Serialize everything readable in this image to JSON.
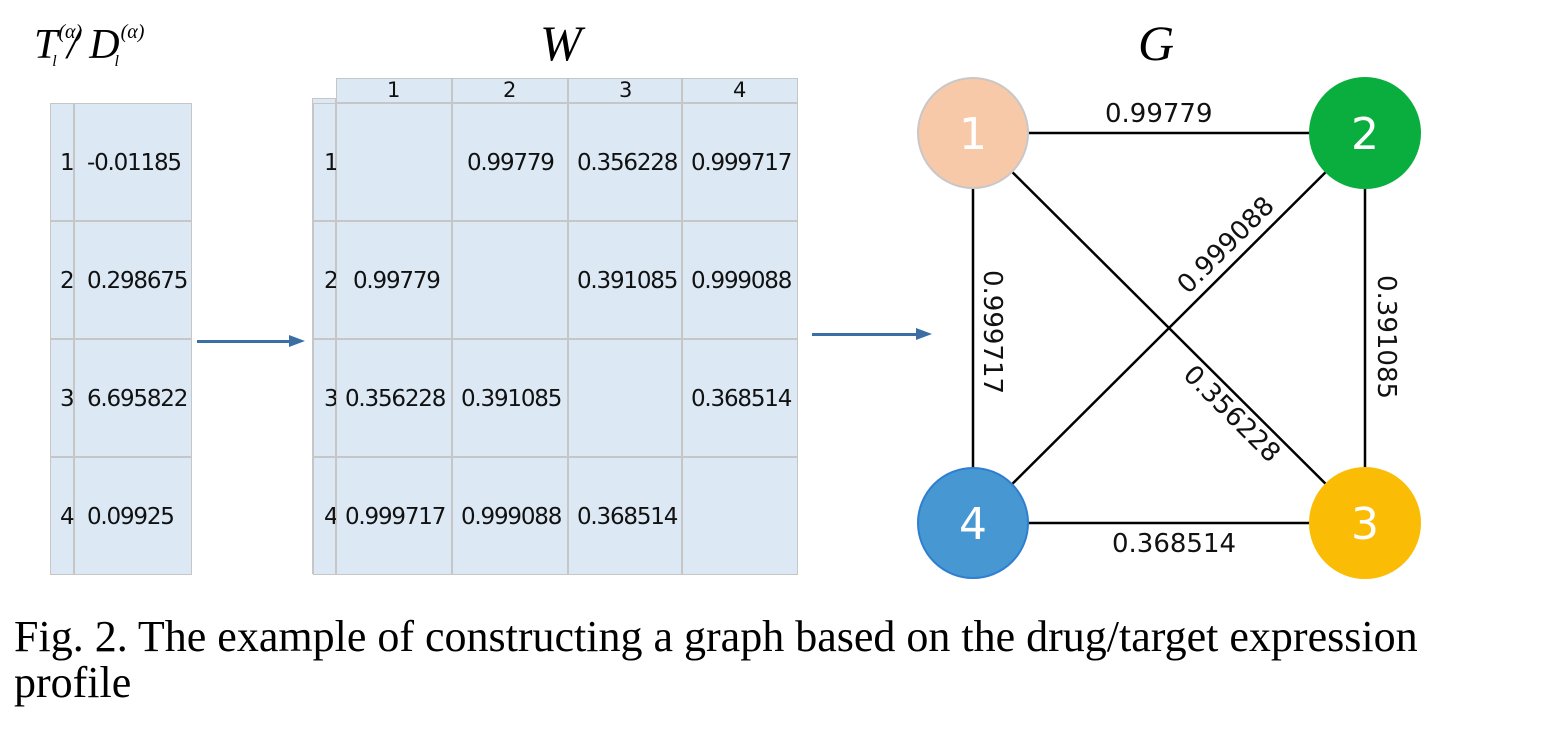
{
  "titles": {
    "vector_main": "T",
    "vector_sep": " / D",
    "vector_sup": "(α)",
    "vector_sub": "l",
    "matrix": "W",
    "graph": "G"
  },
  "vector": [
    {
      "index": "1",
      "value": "-0.01185"
    },
    {
      "index": "2",
      "value": "0.298675"
    },
    {
      "index": "3",
      "value": "6.695822"
    },
    {
      "index": "4",
      "value": "0.09925"
    }
  ],
  "matrix": {
    "columns": [
      "1",
      "2",
      "3",
      "4"
    ],
    "rows": [
      {
        "index": "1",
        "cells": [
          "",
          "0.99779",
          "0.356228",
          "0.999717"
        ]
      },
      {
        "index": "2",
        "cells": [
          "0.99779",
          "",
          "0.391085",
          "0.999088"
        ]
      },
      {
        "index": "3",
        "cells": [
          "0.356228",
          "0.391085",
          "",
          "0.368514"
        ]
      },
      {
        "index": "4",
        "cells": [
          "0.999717",
          "0.999088",
          "0.368514",
          ""
        ]
      }
    ]
  },
  "graph": {
    "nodes": [
      {
        "label": "1",
        "color": "#f8c9a8",
        "stroke": "#c8c8c8"
      },
      {
        "label": "2",
        "color": "#0aae3f",
        "stroke": "#0aae3f"
      },
      {
        "label": "3",
        "color": "#fbbc05",
        "stroke": "#fbbc05"
      },
      {
        "label": "4",
        "color": "#4797d2",
        "stroke": "#2f7fd0"
      }
    ],
    "edges": [
      {
        "from": "1",
        "to": "2",
        "label": "0.99779"
      },
      {
        "from": "2",
        "to": "3",
        "label": "0.391085"
      },
      {
        "from": "4",
        "to": "3",
        "label": "0.368514"
      },
      {
        "from": "1",
        "to": "4",
        "label": "0.999717"
      },
      {
        "from": "4",
        "to": "2",
        "label": "0.999088"
      },
      {
        "from": "1",
        "to": "3",
        "label": "0.356228"
      }
    ],
    "edge_color": "#000000"
  },
  "arrow_color": "#3b6ea5",
  "caption": "Fig. 2. The example of constructing a graph based on the drug/target expression profile"
}
